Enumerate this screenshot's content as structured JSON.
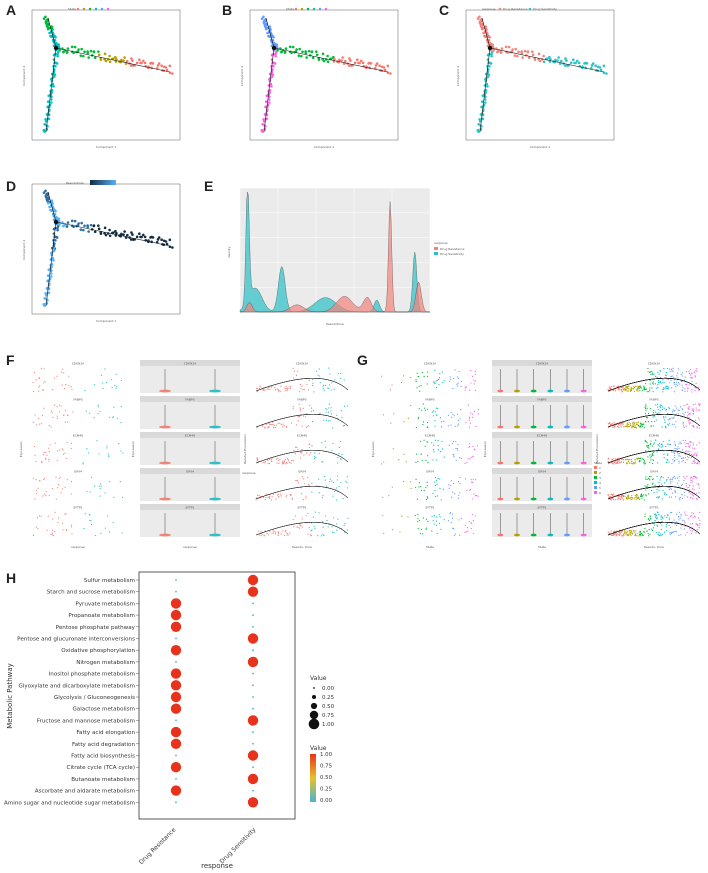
{
  "panel_labels": [
    "A",
    "B",
    "C",
    "D",
    "E",
    "F",
    "G",
    "H"
  ],
  "colors": {
    "resistance": "#f2837b",
    "sensitivity": "#2bc1c7",
    "state1": "#f8766d",
    "state2": "#b79f00",
    "state3": "#00ba38",
    "state4": "#00bfc4",
    "state5": "#619cff",
    "state6": "#f564e3",
    "pseudotime_dark": "#132b43",
    "pseudotime_light": "#56b1f7",
    "panel_bg": "#ebebeb",
    "strip_bg": "#d9d9d9"
  },
  "trajectory": {
    "x_axis": "Component 1",
    "y_axis": "Component 2",
    "legend_B": "State",
    "legend_C": "response",
    "legend_D": "Pseudotime"
  },
  "density_E": {
    "x_label": "Pseudotime",
    "y_label": "density",
    "legend_title": "response",
    "legend_items": [
      "Drug Resistance",
      "Drug Sensitivity"
    ]
  },
  "violin_F": {
    "genes": [
      "CDKN1A",
      "FABP5",
      "ECM46",
      "GPX4",
      "SFTP1"
    ],
    "x_label": "response",
    "y_label": "Expression",
    "x_ticks": [
      "Drug Resistance",
      "Drug Sensitivity"
    ],
    "legend_title": "response",
    "legend_items": [
      "Drug Resistance",
      "Drug Sensitivity"
    ],
    "pseudo_x_label": "Pseudo- time",
    "pseudo_y_label": "Relative Expression"
  },
  "violin_G": {
    "x_label": "State",
    "y_label": "Expression",
    "legend_title": "State",
    "states": [
      "1",
      "2",
      "3",
      "4",
      "5",
      "6"
    ],
    "pseudo_x_label": "Pseudo- time",
    "pseudo_y_label": "Relative Expression"
  },
  "chart_data": {
    "type": "scatter",
    "subtype": "dot-plot",
    "x_label": "response",
    "y_label": "Metabolic Pathway",
    "categories_x": [
      "Drug Resistance",
      "Drug Sensitivity"
    ],
    "pathways": [
      "Sulfur metabolism",
      "Starch and sucrose metabolism",
      "Pyruvate metabolism",
      "Propanoate metabolism",
      "Pentose phosphate pathway",
      "Pentose and glucuronate interconversions",
      "Oxidative phosphorylation",
      "Nitrogen metabolism",
      "Inositol phosphate metabolism",
      "Glyoxylate and dicarboxylate metabolism",
      "Glycolysis / Gluconeogenesis",
      "Galactose metabolism",
      "Fructose and mannose metabolism",
      "Fatty acid elongation",
      "Fatty acid degradation",
      "Fatty acid biosynthesis",
      "Citrate cycle (TCA cycle)",
      "Butanoate metabolism",
      "Ascorbate and aldarate metabolism",
      "Amino sugar and nucleotide sugar metabolism"
    ],
    "series": [
      {
        "name": "Drug Resistance",
        "values": [
          0,
          0,
          1,
          1,
          1,
          0,
          1,
          0,
          1,
          1,
          1,
          1,
          0,
          1,
          1,
          0,
          1,
          0,
          1,
          0
        ]
      },
      {
        "name": "Drug Sensitivity",
        "values": [
          1,
          1,
          0,
          0,
          0,
          1,
          0,
          1,
          0,
          0,
          0,
          0,
          1,
          0,
          0,
          1,
          0,
          1,
          0,
          1
        ]
      }
    ],
    "size_legend": {
      "title": "Value",
      "breaks": [
        "0.00",
        "0.25",
        "0.50",
        "0.75",
        "1.00"
      ]
    },
    "color_legend": {
      "title": "Value",
      "breaks": [
        "1.00",
        "0.75",
        "0.50",
        "0.25",
        "0.00"
      ],
      "low": "#4bb3d4",
      "mid": "#e8c22a",
      "high": "#e8321c"
    }
  }
}
